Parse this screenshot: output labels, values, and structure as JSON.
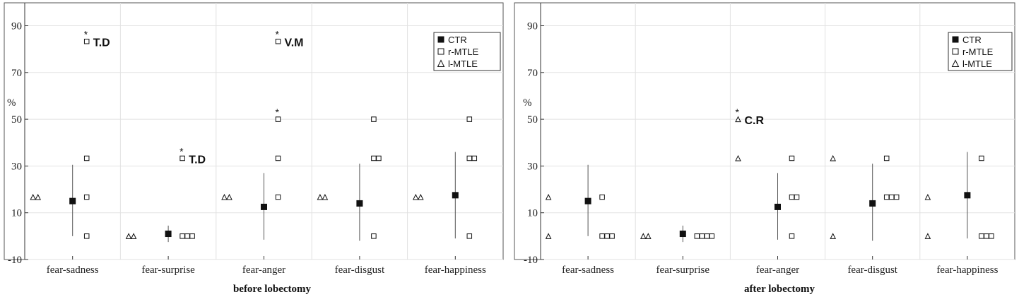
{
  "chart_data": [
    {
      "type": "scatter",
      "title": "",
      "xlabel": "before lobectomy",
      "ylabel": "%",
      "ylim": [
        -10,
        100
      ],
      "yticks": [
        -10,
        10,
        30,
        50,
        70,
        90
      ],
      "categories": [
        "fear-sadness",
        "fear-surprise",
        "fear-anger",
        "fear-disgust",
        "fear-happiness"
      ],
      "grid": true,
      "legend_position": "top-right",
      "legend": [
        "CTR",
        "r-MTLE",
        "l-MTLE"
      ],
      "ctr": [
        {
          "mean": 15,
          "low": 0,
          "high": 30.5
        },
        {
          "mean": 1,
          "low": -2.5,
          "high": 4.5
        },
        {
          "mean": 12.5,
          "low": -1.5,
          "high": 27
        },
        {
          "mean": 14,
          "low": -2,
          "high": 31
        },
        {
          "mean": 17.5,
          "low": -1,
          "high": 36
        }
      ],
      "r_mtle": [
        [
          0,
          16.7,
          33.3,
          83.3
        ],
        [
          0,
          0,
          0,
          33.3
        ],
        [
          16.7,
          33.3,
          50,
          83.3
        ],
        [
          0,
          33.3,
          33.3,
          50
        ],
        [
          0,
          33.3,
          33.3,
          50
        ]
      ],
      "l_mtle": [
        [
          16.7,
          16.7
        ],
        [
          0,
          0
        ],
        [
          16.7,
          16.7
        ],
        [
          16.7,
          16.7
        ],
        [
          16.7,
          16.7
        ]
      ],
      "annotations": [
        {
          "cat": 0,
          "y": 83.3,
          "series": "r",
          "text": "T.D",
          "star": true
        },
        {
          "cat": 1,
          "y": 33.3,
          "series": "r",
          "text": "T.D",
          "star": true
        },
        {
          "cat": 2,
          "y": 83.3,
          "series": "r",
          "text": "V.M",
          "star": true
        },
        {
          "cat": 2,
          "y": 50,
          "series": "r",
          "text": "",
          "star": true
        }
      ]
    },
    {
      "type": "scatter",
      "title": "",
      "xlabel": "after lobectomy",
      "ylabel": "%",
      "ylim": [
        -10,
        100
      ],
      "yticks": [
        -10,
        10,
        30,
        50,
        70,
        90
      ],
      "categories": [
        "fear-sadness",
        "fear-surprise",
        "fear-anger",
        "fear-disgust",
        "fear-happiness"
      ],
      "grid": true,
      "legend_position": "top-right",
      "legend": [
        "CTR",
        "r-MTLE",
        "l-MTLE"
      ],
      "ctr": [
        {
          "mean": 15,
          "low": 0,
          "high": 30.5
        },
        {
          "mean": 1,
          "low": -2.5,
          "high": 4.5
        },
        {
          "mean": 12.5,
          "low": -1.5,
          "high": 27
        },
        {
          "mean": 14,
          "low": -2,
          "high": 31
        },
        {
          "mean": 17.5,
          "low": -1,
          "high": 36
        }
      ],
      "r_mtle": [
        [
          0,
          0,
          0,
          16.7
        ],
        [
          0,
          0,
          0,
          0
        ],
        [
          0,
          16.7,
          16.7,
          33.3
        ],
        [
          16.7,
          16.7,
          16.7,
          33.3
        ],
        [
          0,
          0,
          0,
          33.3
        ]
      ],
      "l_mtle": [
        [
          0,
          16.7
        ],
        [
          0,
          0
        ],
        [
          33.3,
          50
        ],
        [
          0,
          33.3
        ],
        [
          0,
          16.7
        ]
      ],
      "annotations": [
        {
          "cat": 2,
          "y": 50,
          "series": "l",
          "text": "C.R",
          "star": true
        }
      ]
    }
  ]
}
